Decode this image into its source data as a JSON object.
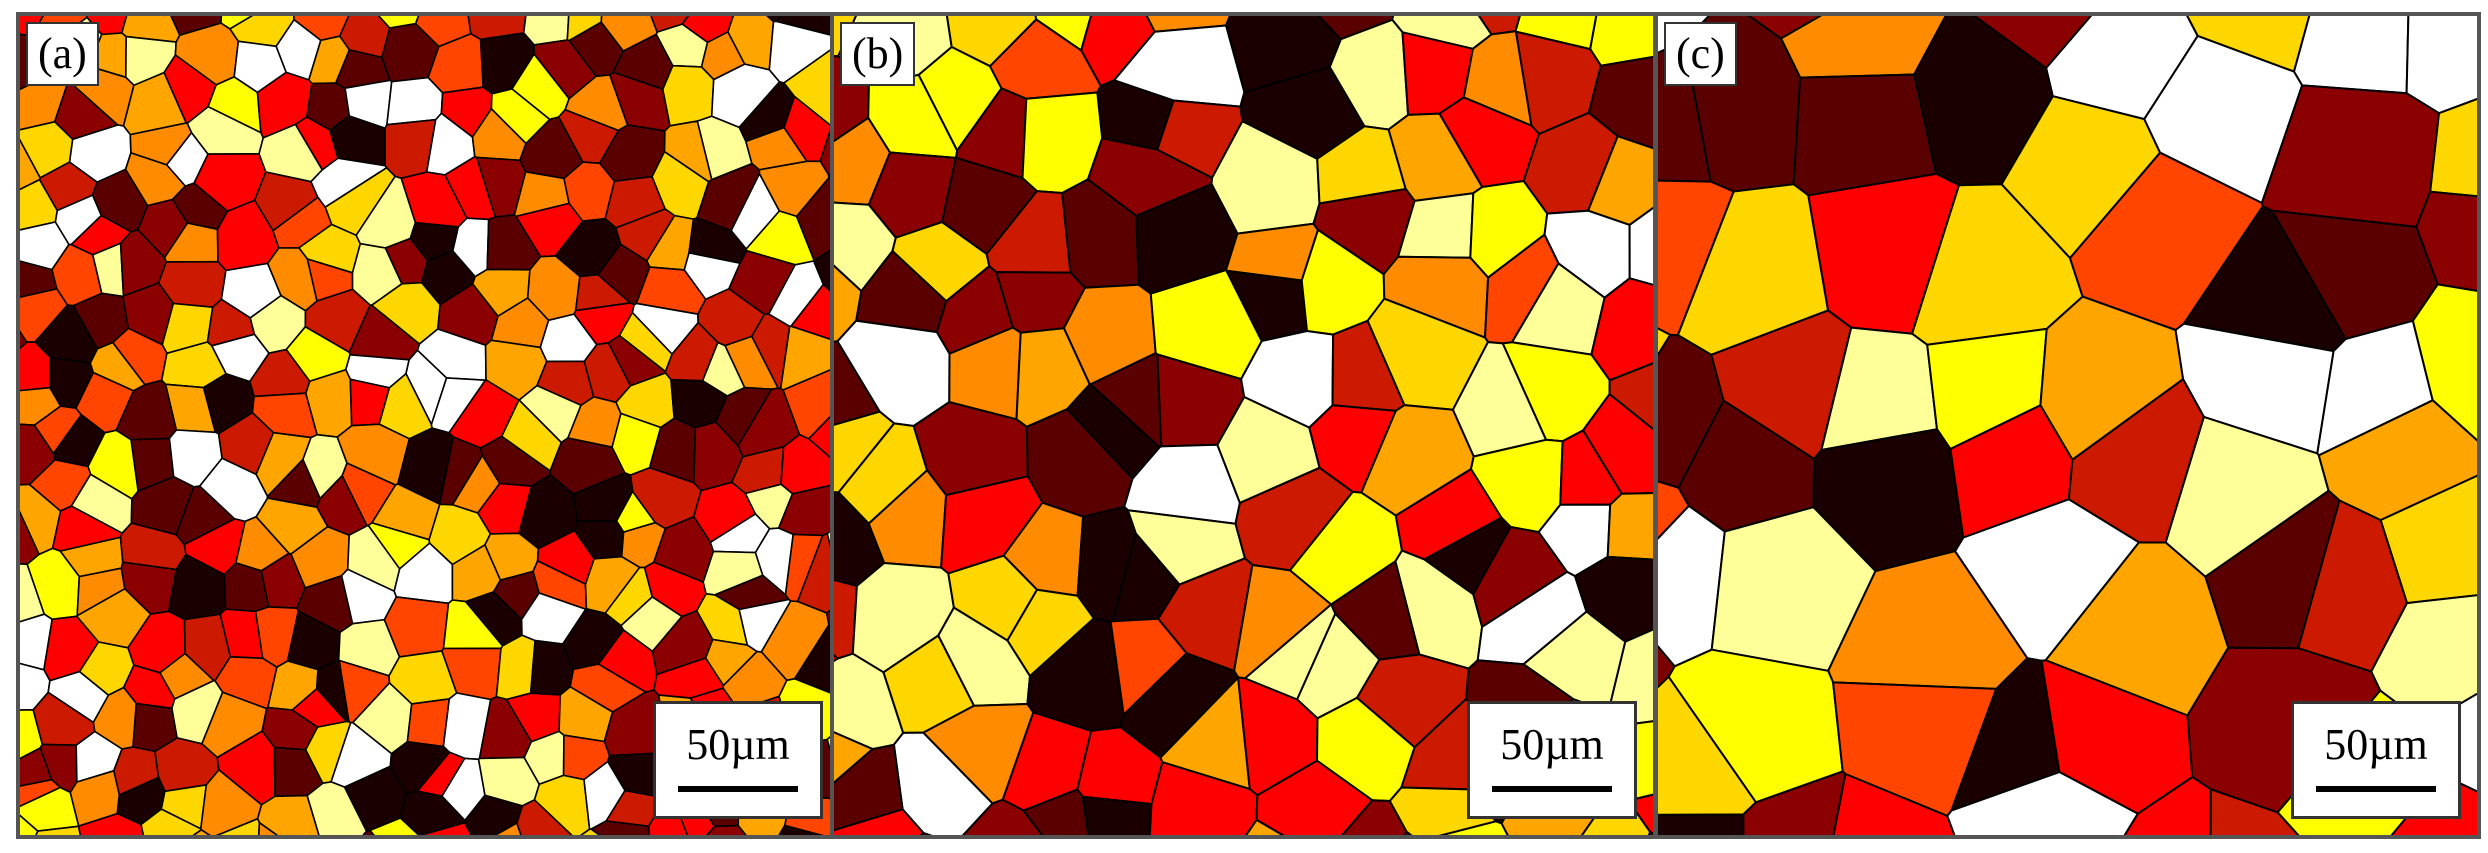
{
  "panels": [
    {
      "label": "(a)",
      "scale_label": "50µm",
      "grain_size": "fine",
      "seed": 11
    },
    {
      "label": "(b)",
      "scale_label": "50µm",
      "grain_size": "medium",
      "seed": 27
    },
    {
      "label": "(c)",
      "scale_label": "50µm",
      "grain_size": "coarse",
      "seed": 53
    }
  ],
  "palette": [
    "#1a0000",
    "#5a0000",
    "#8b0000",
    "#cc1a00",
    "#ff0000",
    "#ff4500",
    "#ff8c00",
    "#ffa500",
    "#ffd700",
    "#ffff00",
    "#ffff99",
    "#ffffff"
  ],
  "boundary_color": "#000000"
}
